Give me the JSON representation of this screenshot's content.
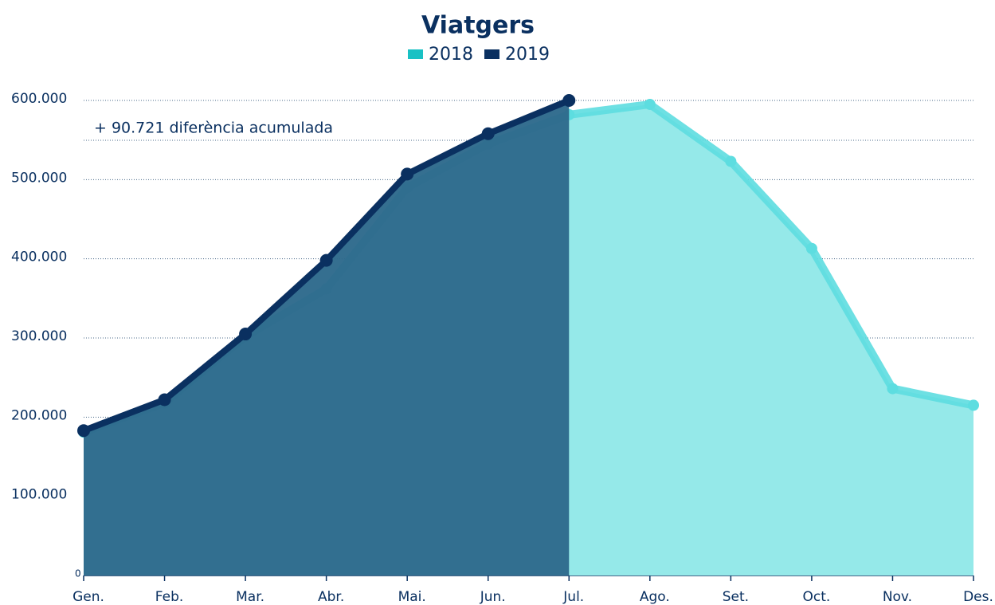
{
  "chart_data": {
    "type": "area",
    "title": "Viatgers",
    "annotation": "+ 90.721 diferència acumulada",
    "categories": [
      "Gen.",
      "Feb.",
      "Mar.",
      "Abr.",
      "Mai.",
      "Jun.",
      "Jul.",
      "Ago.",
      "Set.",
      "Oct.",
      "Nov.",
      "Des."
    ],
    "series": [
      {
        "name": "2018",
        "color": "#19c1c4",
        "line_color": "#5ddde0",
        "area_color": "#95e9e9",
        "values": [
          181000,
          218000,
          302000,
          362000,
          490000,
          545000,
          582000,
          595000,
          523000,
          413000,
          236000,
          215000
        ]
      },
      {
        "name": "2019",
        "color": "#0a3060",
        "line_color": "#0a3060",
        "area_color": "#2e6a8c",
        "values": [
          183000,
          222000,
          305000,
          398000,
          507000,
          558000,
          600000,
          null,
          null,
          null,
          null,
          null
        ]
      }
    ],
    "ylim": [
      0,
      600000
    ],
    "yticks": [
      0,
      {
        "value": 100000,
        "label": "100.000"
      },
      {
        "value": 200000,
        "label": "200.000"
      },
      {
        "value": 300000,
        "label": "300.000"
      },
      {
        "value": 400000,
        "label": "400.000"
      },
      {
        "value": 500000,
        "label": "500.000"
      },
      {
        "value": 600000,
        "label": "600.000"
      }
    ],
    "grid": true,
    "legend": "top"
  }
}
